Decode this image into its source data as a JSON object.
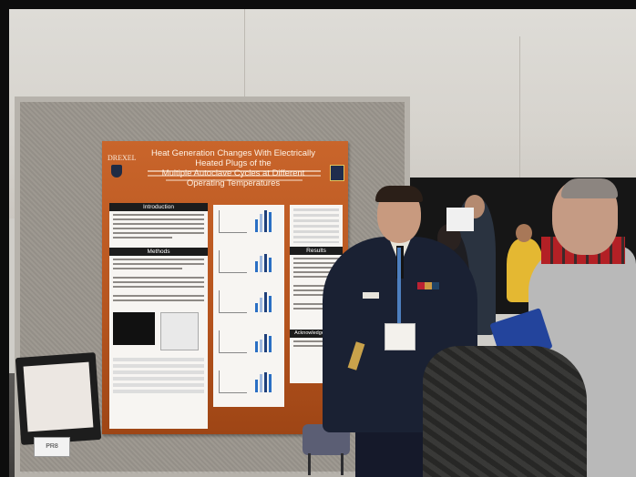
{
  "poster": {
    "logo_text": "DREXEL",
    "title_line1": "Heat Generation Changes With Electrically Heated Plugs of the",
    "title_line2": "Multiple Autoclave Cycles at Different Operating Temperatures",
    "sections": {
      "introduction": "Introduction",
      "methods": "Methods",
      "results": "Results",
      "acknowledgements": "Acknowledgements"
    }
  },
  "booth_sign": "PR8",
  "colors": {
    "poster_orange": "#c9652b",
    "uniform_navy": "#1a2133",
    "scarf_red": "#b32025",
    "folder_blue": "#23449c"
  }
}
